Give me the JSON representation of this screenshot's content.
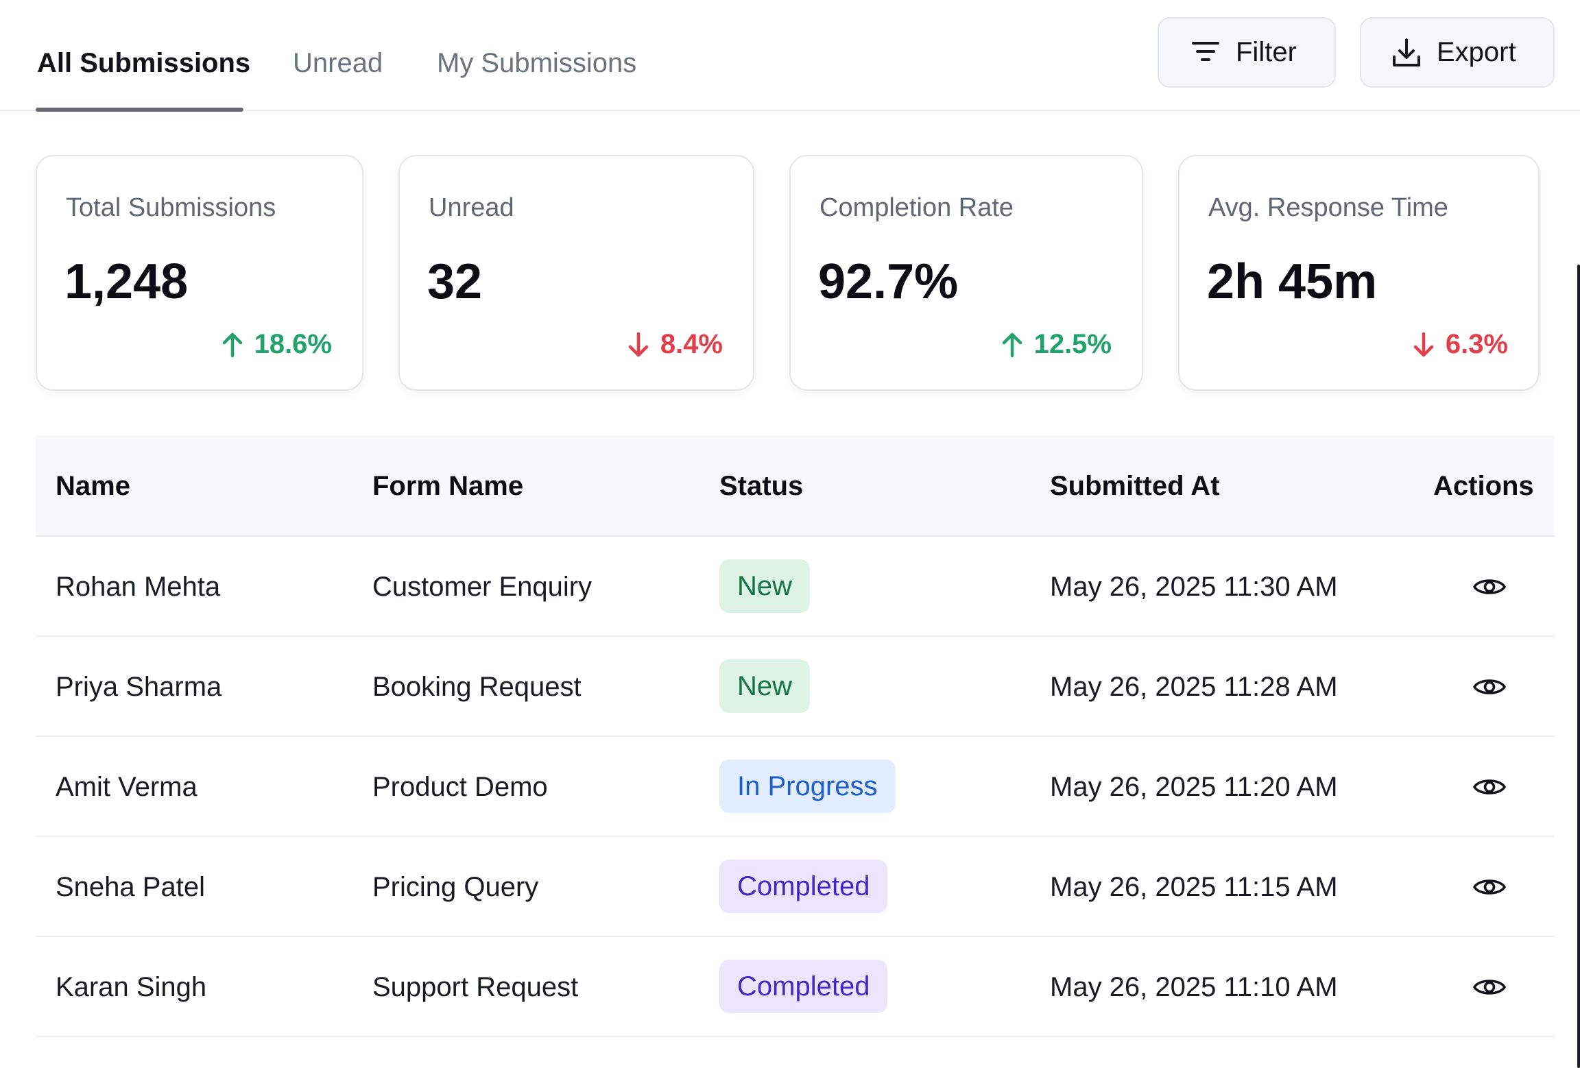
{
  "tabs": [
    {
      "label": "All Submissions",
      "active": true
    },
    {
      "label": "Unread",
      "active": false
    },
    {
      "label": "My Submissions",
      "active": false
    }
  ],
  "toolbar": {
    "filter_label": "Filter",
    "filter_icon": "filter-icon",
    "export_label": "Export",
    "export_icon": "download-icon"
  },
  "stats": [
    {
      "label": "Total Submissions",
      "value": "1,248",
      "delta": "18.6%",
      "trend": "up"
    },
    {
      "label": "Unread",
      "value": "32",
      "delta": "8.4%",
      "trend": "down"
    },
    {
      "label": "Completion Rate",
      "value": "92.7%",
      "delta": "12.5%",
      "trend": "up"
    },
    {
      "label": "Avg. Response Time",
      "value": "2h 45m",
      "delta": "6.3%",
      "trend": "down"
    }
  ],
  "table": {
    "columns": [
      "Name",
      "Form Name",
      "Status",
      "Submitted At",
      "Actions"
    ],
    "rows": [
      {
        "name": "Rohan Mehta",
        "form": "Customer Enquiry",
        "status": "New",
        "submitted_at": "May 26, 2025 11:30 AM",
        "action_icon": "eye-icon"
      },
      {
        "name": "Priya Sharma",
        "form": "Booking Request",
        "status": "New",
        "submitted_at": "May 26, 2025 11:28 AM",
        "action_icon": "eye-icon"
      },
      {
        "name": "Amit Verma",
        "form": "Product Demo",
        "status": "In Progress",
        "submitted_at": "May 26, 2025 11:20 AM",
        "action_icon": "eye-icon"
      },
      {
        "name": "Sneha Patel",
        "form": "Pricing Query",
        "status": "Completed",
        "submitted_at": "May 26, 2025 11:15 AM",
        "action_icon": "eye-icon"
      },
      {
        "name": "Karan Singh",
        "form": "Support Request",
        "status": "Completed",
        "submitted_at": "May 26, 2025 11:10 AM",
        "action_icon": "eye-icon"
      }
    ]
  },
  "colors": {
    "positive": "#21a26a",
    "negative": "#e23d4a",
    "status_new": "#167444",
    "status_in_progress": "#1f5dcc",
    "status_completed": "#4328c4"
  }
}
